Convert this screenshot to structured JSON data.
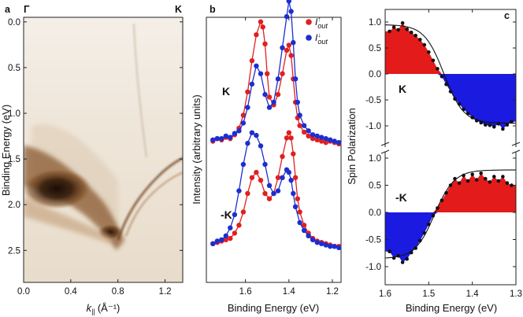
{
  "chart_data": [
    {
      "panel": "a",
      "type": "heatmap",
      "label": "a",
      "top_labels": [
        "Γ",
        "K"
      ],
      "xlabel_var": "k",
      "xlabel_sub": "||",
      "xlabel_units": "(Å⁻¹)",
      "ylabel": "Binding Energy (eV)",
      "xlim": [
        0.0,
        1.35
      ],
      "ylim": [
        -0.05,
        2.85
      ],
      "xticks": [
        "0.0",
        "0.4",
        "0.8",
        "1.2"
      ],
      "yticks": [
        "0.0",
        "0.5",
        "1.0",
        "1.5",
        "2.0",
        "2.5"
      ],
      "colors": {
        "dark": "#2a1608",
        "mid": "#7a4a22",
        "light": "#d9c3a6",
        "bg": "#f2ece4"
      }
    },
    {
      "panel": "b",
      "type": "scatter",
      "label": "b",
      "xlabel": "Binding Energy (eV)",
      "ylabel": "Intensity (arbitrary units)",
      "xlim": [
        1.78,
        1.16
      ],
      "xticks": [
        "1.6",
        "1.4",
        "1.2"
      ],
      "legend": [
        {
          "var": "I",
          "sup": "↑",
          "sub": "out",
          "color": "#e02020"
        },
        {
          "var": "I",
          "sup": "↓",
          "sub": "out",
          "color": "#1c2ed0"
        }
      ],
      "curve_labels": [
        "K",
        "-K"
      ],
      "series": [
        {
          "name": "K up",
          "color": "#e02020",
          "x": [
            1.75,
            1.73,
            1.71,
            1.69,
            1.67,
            1.65,
            1.63,
            1.61,
            1.59,
            1.57,
            1.55,
            1.53,
            1.52,
            1.51,
            1.5,
            1.49,
            1.47,
            1.45,
            1.43,
            1.41,
            1.4,
            1.39,
            1.38,
            1.37,
            1.36,
            1.35,
            1.33,
            1.31,
            1.29,
            1.27,
            1.25,
            1.23,
            1.21,
            1.19,
            1.17
          ],
          "y": [
            0.1,
            0.12,
            0.11,
            0.13,
            0.12,
            0.15,
            0.2,
            0.3,
            0.48,
            0.72,
            0.92,
            1.02,
            0.98,
            0.85,
            0.62,
            0.44,
            0.38,
            0.46,
            0.62,
            0.8,
            0.84,
            0.76,
            0.58,
            0.4,
            0.28,
            0.22,
            0.17,
            0.14,
            0.12,
            0.11,
            0.1,
            0.09,
            0.1,
            0.09,
            0.08
          ]
        },
        {
          "name": "K down",
          "color": "#1c2ed0",
          "x": [
            1.75,
            1.73,
            1.71,
            1.69,
            1.67,
            1.65,
            1.63,
            1.61,
            1.59,
            1.57,
            1.55,
            1.53,
            1.51,
            1.49,
            1.47,
            1.45,
            1.43,
            1.41,
            1.4,
            1.39,
            1.38,
            1.37,
            1.36,
            1.35,
            1.33,
            1.31,
            1.29,
            1.27,
            1.25,
            1.23,
            1.21,
            1.19,
            1.17
          ],
          "y": [
            0.11,
            0.12,
            0.12,
            0.14,
            0.13,
            0.16,
            0.18,
            0.24,
            0.36,
            0.54,
            0.68,
            0.62,
            0.46,
            0.36,
            0.4,
            0.58,
            0.82,
            1.06,
            1.18,
            1.1,
            0.86,
            0.58,
            0.4,
            0.3,
            0.22,
            0.18,
            0.15,
            0.14,
            0.13,
            0.12,
            0.11,
            0.1,
            0.09
          ]
        },
        {
          "name": "-K up",
          "color": "#e02020",
          "x": [
            1.75,
            1.73,
            1.71,
            1.69,
            1.67,
            1.65,
            1.63,
            1.61,
            1.59,
            1.57,
            1.55,
            1.53,
            1.51,
            1.49,
            1.47,
            1.45,
            1.43,
            1.41,
            1.4,
            1.39,
            1.38,
            1.37,
            1.36,
            1.35,
            1.33,
            1.31,
            1.29,
            1.27,
            1.25,
            1.23,
            1.21,
            1.19,
            1.17
          ],
          "y": [
            0.12,
            0.13,
            0.14,
            0.15,
            0.16,
            0.2,
            0.26,
            0.36,
            0.5,
            0.62,
            0.66,
            0.6,
            0.5,
            0.46,
            0.5,
            0.62,
            0.78,
            0.92,
            0.96,
            0.92,
            0.8,
            0.62,
            0.46,
            0.36,
            0.26,
            0.2,
            0.16,
            0.14,
            0.13,
            0.12,
            0.11,
            0.1,
            0.1
          ]
        },
        {
          "name": "-K down",
          "color": "#1c2ed0",
          "x": [
            1.75,
            1.73,
            1.71,
            1.69,
            1.67,
            1.65,
            1.63,
            1.61,
            1.59,
            1.57,
            1.55,
            1.53,
            1.51,
            1.49,
            1.47,
            1.45,
            1.43,
            1.41,
            1.4,
            1.39,
            1.38,
            1.37,
            1.35,
            1.33,
            1.31,
            1.29,
            1.27,
            1.25,
            1.23,
            1.21,
            1.19,
            1.17
          ],
          "y": [
            0.12,
            0.14,
            0.15,
            0.18,
            0.24,
            0.34,
            0.52,
            0.72,
            0.88,
            0.96,
            0.94,
            0.86,
            0.72,
            0.56,
            0.5,
            0.52,
            0.62,
            0.68,
            0.66,
            0.6,
            0.5,
            0.4,
            0.28,
            0.22,
            0.18,
            0.15,
            0.13,
            0.12,
            0.11,
            0.1,
            0.1,
            0.09
          ]
        }
      ]
    },
    {
      "panel": "c",
      "type": "area",
      "label": "c",
      "xlabel": "Binding Energy (eV)",
      "ylabel": "Spin Polarization",
      "xlim": [
        1.6,
        1.3
      ],
      "xticks": [
        "1.6",
        "1.5",
        "1.4",
        "1.3"
      ],
      "yticks": [
        "1.0",
        "0.5",
        "0.0",
        "-0.5",
        "-1.0"
      ],
      "ylim": [
        -1.15,
        1.15
      ],
      "curve_labels": [
        "K",
        "-K"
      ],
      "colors": {
        "positive": "#e31b1b",
        "negative": "#1a1ae0"
      },
      "series": [
        {
          "name": "K",
          "x": [
            1.59,
            1.58,
            1.57,
            1.56,
            1.55,
            1.54,
            1.53,
            1.52,
            1.51,
            1.5,
            1.49,
            1.48,
            1.47,
            1.46,
            1.45,
            1.44,
            1.43,
            1.42,
            1.41,
            1.4,
            1.39,
            1.38,
            1.37,
            1.36,
            1.35,
            1.34,
            1.33,
            1.32,
            1.31
          ],
          "y": [
            0.82,
            0.9,
            0.85,
            0.98,
            0.86,
            0.8,
            0.74,
            0.66,
            0.56,
            0.42,
            0.26,
            0.1,
            -0.05,
            -0.2,
            -0.34,
            -0.48,
            -0.58,
            -0.68,
            -0.76,
            -0.84,
            -0.9,
            -0.94,
            -0.98,
            -0.99,
            -1.02,
            -0.96,
            -1.06,
            -0.98,
            -0.92
          ]
        },
        {
          "name": "-K",
          "x": [
            1.59,
            1.58,
            1.57,
            1.56,
            1.55,
            1.54,
            1.53,
            1.52,
            1.51,
            1.5,
            1.49,
            1.48,
            1.47,
            1.46,
            1.45,
            1.44,
            1.43,
            1.42,
            1.41,
            1.4,
            1.39,
            1.38,
            1.37,
            1.36,
            1.35,
            1.34,
            1.33,
            1.32,
            1.31
          ],
          "y": [
            -0.72,
            -0.84,
            -0.8,
            -0.92,
            -0.86,
            -0.74,
            -0.66,
            -0.52,
            -0.38,
            -0.22,
            -0.06,
            0.08,
            0.22,
            0.36,
            0.5,
            0.62,
            0.54,
            0.68,
            0.58,
            0.7,
            0.6,
            0.72,
            0.62,
            0.56,
            0.66,
            0.58,
            0.66,
            0.54,
            0.5
          ]
        }
      ]
    }
  ]
}
